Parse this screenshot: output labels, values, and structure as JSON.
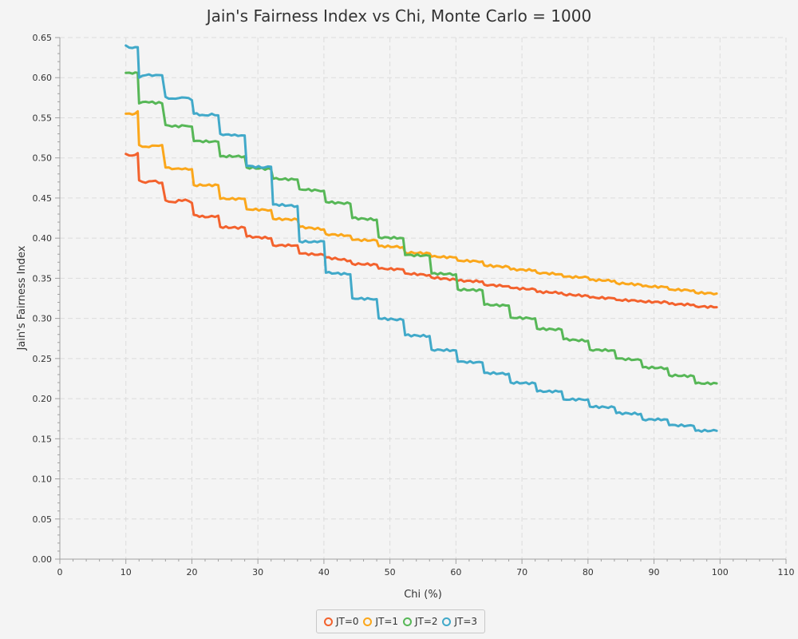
{
  "chart_data": {
    "type": "line",
    "title": "Jain's Fairness Index vs Chi, Monte Carlo = 1000",
    "xlabel": "Chi (%)",
    "ylabel": "Jain's Fairness Index",
    "xlim": [
      0,
      110
    ],
    "ylim": [
      0,
      0.65
    ],
    "x_ticks": [
      "0",
      "10",
      "20",
      "30",
      "40",
      "50",
      "60",
      "70",
      "80",
      "90",
      "100",
      "110"
    ],
    "y_ticks": [
      "0.00",
      "0.05",
      "0.10",
      "0.15",
      "0.20",
      "0.25",
      "0.30",
      "0.35",
      "0.40",
      "0.45",
      "0.50",
      "0.55",
      "0.60",
      "0.65"
    ],
    "grid": true,
    "legend_position": "bottom-center",
    "series": [
      {
        "name": "JT=0",
        "color": "#f3622d",
        "points": [
          [
            10,
            0.505
          ],
          [
            11,
            0.503
          ],
          [
            11.8,
            0.506
          ],
          [
            12,
            0.472
          ],
          [
            13,
            0.469
          ],
          [
            14,
            0.471
          ],
          [
            15.5,
            0.469
          ],
          [
            16,
            0.447
          ],
          [
            17,
            0.445
          ],
          [
            19,
            0.448
          ],
          [
            20,
            0.444
          ],
          [
            20.3,
            0.429
          ],
          [
            22,
            0.426
          ],
          [
            24,
            0.428
          ],
          [
            24.3,
            0.414
          ],
          [
            26,
            0.413
          ],
          [
            28,
            0.413
          ],
          [
            28.3,
            0.402
          ],
          [
            32,
            0.4
          ],
          [
            32.3,
            0.391
          ],
          [
            36,
            0.391
          ],
          [
            36.3,
            0.381
          ],
          [
            40,
            0.379
          ],
          [
            40.3,
            0.376
          ],
          [
            44,
            0.372
          ],
          [
            44.3,
            0.368
          ],
          [
            48,
            0.367
          ],
          [
            48.3,
            0.362
          ],
          [
            52,
            0.361
          ],
          [
            52.3,
            0.356
          ],
          [
            56,
            0.354
          ],
          [
            56.3,
            0.351
          ],
          [
            60,
            0.348
          ],
          [
            60.3,
            0.347
          ],
          [
            64,
            0.346
          ],
          [
            64.3,
            0.342
          ],
          [
            68,
            0.34
          ],
          [
            68.3,
            0.338
          ],
          [
            72,
            0.336
          ],
          [
            72.3,
            0.333
          ],
          [
            76,
            0.332
          ],
          [
            76.3,
            0.33
          ],
          [
            80,
            0.328
          ],
          [
            80.3,
            0.326
          ],
          [
            84,
            0.325
          ],
          [
            84.3,
            0.323
          ],
          [
            88,
            0.322
          ],
          [
            88.3,
            0.321
          ],
          [
            92,
            0.32
          ],
          [
            92.3,
            0.318
          ],
          [
            96,
            0.317
          ],
          [
            96.3,
            0.315
          ],
          [
            99.5,
            0.314
          ]
        ]
      },
      {
        "name": "JT=1",
        "color": "#fba71b",
        "points": [
          [
            10,
            0.555
          ],
          [
            11,
            0.554
          ],
          [
            11.8,
            0.558
          ],
          [
            12,
            0.516
          ],
          [
            13,
            0.514
          ],
          [
            15.5,
            0.516
          ],
          [
            16,
            0.488
          ],
          [
            17,
            0.486
          ],
          [
            19,
            0.487
          ],
          [
            20,
            0.486
          ],
          [
            20.3,
            0.466
          ],
          [
            24,
            0.466
          ],
          [
            24.3,
            0.449
          ],
          [
            28,
            0.449
          ],
          [
            28.3,
            0.436
          ],
          [
            32,
            0.435
          ],
          [
            32.3,
            0.424
          ],
          [
            36,
            0.423
          ],
          [
            36.3,
            0.414
          ],
          [
            40,
            0.411
          ],
          [
            40.3,
            0.405
          ],
          [
            44,
            0.403
          ],
          [
            44.3,
            0.398
          ],
          [
            48,
            0.397
          ],
          [
            48.3,
            0.39
          ],
          [
            52,
            0.389
          ],
          [
            52.3,
            0.382
          ],
          [
            56,
            0.381
          ],
          [
            56.3,
            0.377
          ],
          [
            60,
            0.376
          ],
          [
            60.3,
            0.372
          ],
          [
            64,
            0.371
          ],
          [
            64.3,
            0.366
          ],
          [
            68,
            0.364
          ],
          [
            68.3,
            0.361
          ],
          [
            72,
            0.36
          ],
          [
            72.3,
            0.357
          ],
          [
            76,
            0.355
          ],
          [
            76.3,
            0.352
          ],
          [
            80,
            0.351
          ],
          [
            80.3,
            0.348
          ],
          [
            84,
            0.347
          ],
          [
            84.3,
            0.344
          ],
          [
            88,
            0.342
          ],
          [
            88.3,
            0.34
          ],
          [
            92,
            0.339
          ],
          [
            92.3,
            0.336
          ],
          [
            96,
            0.335
          ],
          [
            96.3,
            0.332
          ],
          [
            99.5,
            0.331
          ]
        ]
      },
      {
        "name": "JT=2",
        "color": "#57b757",
        "points": [
          [
            10,
            0.606
          ],
          [
            11,
            0.605
          ],
          [
            11.8,
            0.606
          ],
          [
            12,
            0.568
          ],
          [
            13,
            0.57
          ],
          [
            15.5,
            0.568
          ],
          [
            16,
            0.541
          ],
          [
            17,
            0.539
          ],
          [
            19,
            0.54
          ],
          [
            20,
            0.539
          ],
          [
            20.3,
            0.521
          ],
          [
            24,
            0.52
          ],
          [
            24.3,
            0.502
          ],
          [
            28,
            0.502
          ],
          [
            28.3,
            0.488
          ],
          [
            32,
            0.486
          ],
          [
            32.3,
            0.474
          ],
          [
            36,
            0.473
          ],
          [
            36.3,
            0.461
          ],
          [
            40,
            0.459
          ],
          [
            40.3,
            0.445
          ],
          [
            44,
            0.443
          ],
          [
            44.3,
            0.425
          ],
          [
            48,
            0.423
          ],
          [
            48.3,
            0.401
          ],
          [
            52,
            0.4
          ],
          [
            52.3,
            0.379
          ],
          [
            56,
            0.378
          ],
          [
            56.3,
            0.356
          ],
          [
            60,
            0.355
          ],
          [
            60.3,
            0.336
          ],
          [
            64,
            0.335
          ],
          [
            64.3,
            0.317
          ],
          [
            68,
            0.316
          ],
          [
            68.3,
            0.301
          ],
          [
            72,
            0.3
          ],
          [
            72.3,
            0.287
          ],
          [
            76,
            0.286
          ],
          [
            76.3,
            0.274
          ],
          [
            80,
            0.272
          ],
          [
            80.3,
            0.261
          ],
          [
            84,
            0.26
          ],
          [
            84.3,
            0.25
          ],
          [
            88,
            0.248
          ],
          [
            88.3,
            0.239
          ],
          [
            92,
            0.238
          ],
          [
            92.3,
            0.229
          ],
          [
            96,
            0.228
          ],
          [
            96.3,
            0.219
          ],
          [
            99.5,
            0.219
          ]
        ]
      },
      {
        "name": "JT=3",
        "color": "#41a9c9",
        "points": [
          [
            10,
            0.64
          ],
          [
            11,
            0.637
          ],
          [
            11.8,
            0.638
          ],
          [
            12,
            0.6
          ],
          [
            13,
            0.603
          ],
          [
            15.5,
            0.603
          ],
          [
            16,
            0.576
          ],
          [
            17,
            0.574
          ],
          [
            19,
            0.575
          ],
          [
            20,
            0.572
          ],
          [
            20.3,
            0.555
          ],
          [
            22,
            0.553
          ],
          [
            23,
            0.555
          ],
          [
            24,
            0.553
          ],
          [
            24.3,
            0.53
          ],
          [
            26,
            0.528
          ],
          [
            28,
            0.528
          ],
          [
            28.3,
            0.49
          ],
          [
            31,
            0.488
          ],
          [
            32,
            0.489
          ],
          [
            32.3,
            0.442
          ],
          [
            36,
            0.44
          ],
          [
            36.3,
            0.396
          ],
          [
            39,
            0.395
          ],
          [
            40,
            0.396
          ],
          [
            40.3,
            0.357
          ],
          [
            44,
            0.355
          ],
          [
            44.3,
            0.325
          ],
          [
            48,
            0.324
          ],
          [
            48.3,
            0.3
          ],
          [
            52,
            0.298
          ],
          [
            52.3,
            0.279
          ],
          [
            56,
            0.278
          ],
          [
            56.3,
            0.261
          ],
          [
            60,
            0.26
          ],
          [
            60.3,
            0.246
          ],
          [
            64,
            0.245
          ],
          [
            64.3,
            0.232
          ],
          [
            68,
            0.231
          ],
          [
            68.3,
            0.22
          ],
          [
            72,
            0.219
          ],
          [
            72.3,
            0.209
          ],
          [
            76,
            0.209
          ],
          [
            76.3,
            0.199
          ],
          [
            80,
            0.199
          ],
          [
            80.3,
            0.19
          ],
          [
            84,
            0.189
          ],
          [
            84.3,
            0.182
          ],
          [
            88,
            0.181
          ],
          [
            88.3,
            0.174
          ],
          [
            92,
            0.174
          ],
          [
            92.3,
            0.167
          ],
          [
            96,
            0.166
          ],
          [
            96.3,
            0.16
          ],
          [
            99.5,
            0.16
          ]
        ]
      }
    ]
  }
}
